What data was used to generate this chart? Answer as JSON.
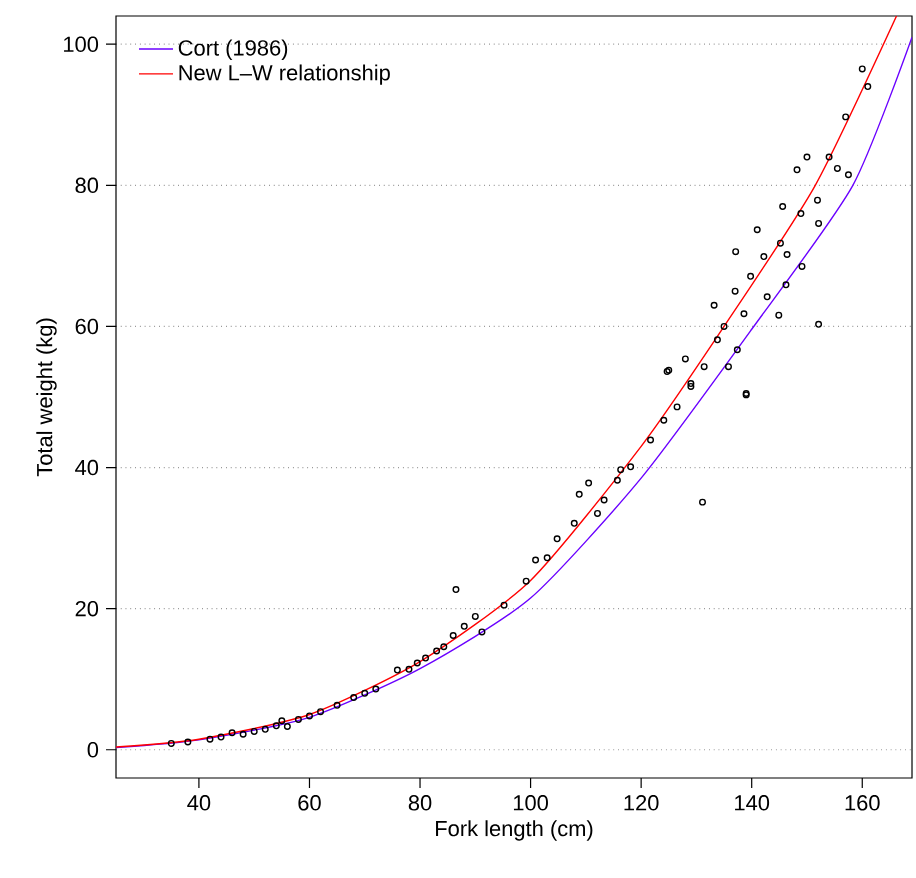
{
  "chart_data": {
    "type": "scatter",
    "xlabel": "Fork length (cm)",
    "ylabel": "Total weight (kg)",
    "xlim": [
      25,
      169
    ],
    "ylim": [
      -4,
      104
    ],
    "xticks": [
      40,
      60,
      80,
      100,
      120,
      140,
      160
    ],
    "yticks": [
      0,
      20,
      40,
      60,
      80,
      100
    ],
    "grid": "y",
    "legend": "top left",
    "series": [
      {
        "marker": "circle",
        "color": "#000000",
        "x": [
          35,
          38,
          42,
          44,
          46,
          48,
          50,
          52,
          54,
          55,
          56,
          58,
          60,
          62,
          65,
          68,
          70,
          72,
          75.9,
          78,
          79.5,
          81,
          83,
          84.3,
          86,
          86.5,
          88,
          90,
          91.2,
          95.2,
          99.2,
          100.9,
          103,
          104.8,
          107.9,
          108.8,
          110.5,
          112.1,
          113.3,
          115.7,
          116.3,
          118.1,
          121.7,
          124.1,
          124.7,
          125,
          126.5,
          128,
          129,
          129,
          131.1,
          131.4,
          133.2,
          133.8,
          135,
          135.8,
          137,
          137.1,
          137.4,
          138.6,
          139,
          139,
          139.8,
          141,
          142.2,
          142.8,
          144.9,
          145.2,
          145.6,
          146.2,
          146.4,
          148.2,
          148.9,
          149.1,
          150,
          151.9,
          152.1,
          152.1,
          154,
          155.5,
          157,
          157.5,
          160,
          161
        ],
        "values": [
          0.9,
          1.1,
          1.5,
          1.8,
          2.4,
          2.2,
          2.6,
          2.9,
          3.4,
          4.1,
          3.3,
          4.3,
          4.8,
          5.4,
          6.3,
          7.4,
          8,
          8.6,
          11.3,
          11.4,
          12.3,
          13,
          14,
          14.6,
          16.2,
          22.7,
          17.5,
          18.9,
          16.7,
          20.5,
          23.9,
          26.9,
          27.2,
          29.9,
          32.1,
          36.2,
          37.8,
          33.5,
          35.4,
          38.2,
          39.7,
          40.1,
          43.9,
          46.7,
          53.6,
          53.8,
          48.6,
          55.4,
          51.5,
          51.9,
          35.1,
          54.3,
          63,
          58.1,
          60,
          54.3,
          65,
          70.6,
          56.7,
          61.8,
          50.3,
          50.5,
          67.1,
          73.7,
          69.9,
          64.2,
          61.6,
          71.8,
          77,
          65.9,
          70.2,
          82.2,
          76,
          68.5,
          84,
          77.9,
          74.6,
          60.3,
          84,
          82.4,
          89.7,
          81.5,
          96.5,
          94
        ]
      },
      {
        "type": "line",
        "name": "Cort (1986)",
        "marker": "none",
        "color": "#6a00ff",
        "x": [
          25,
          40,
          60,
          80,
          100,
          120,
          140,
          158.3,
          169
        ],
        "values": [
          0.3,
          1.4,
          4.6,
          11.5,
          21.5,
          38.5,
          59.6,
          80,
          101
        ]
      },
      {
        "type": "line",
        "name": "New L–W relationship",
        "marker": "none",
        "color": "#ff0000",
        "x": [
          25,
          40,
          60,
          80,
          100,
          120,
          135,
          151.5,
          166.2
        ],
        "values": [
          0.4,
          1.5,
          5,
          12.5,
          24,
          43,
          60,
          80,
          104
        ]
      }
    ]
  }
}
